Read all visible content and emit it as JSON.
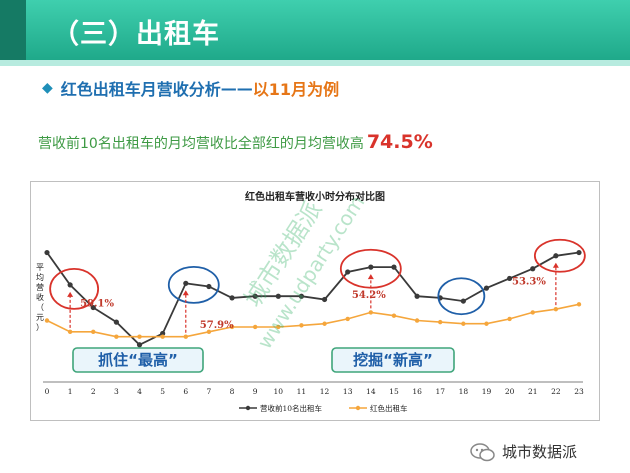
{
  "slide": {
    "title": "（三）出租车",
    "bullet_part1": "红色出租车月营收分析",
    "bullet_dash": "——",
    "bullet_part2": "以11月为例",
    "stat_text": "营收前10名出租车的月均营收比全部红的月均营收高",
    "stat_value": "74.5%"
  },
  "footer": {
    "brand": "城市数据派"
  },
  "watermark": {
    "line1": "城市数据派",
    "line2": "www.udparty.com"
  },
  "colors": {
    "header": "#2bbf9c",
    "series_top10": "#3a3a3a",
    "series_all": "#f5a63c",
    "circle_red": "#d9332b",
    "circle_blue": "#1f5fa8",
    "callout_text": "#c0392b",
    "box_border": "#3fa57a",
    "box_text": "#1f5fa8"
  },
  "chart_data": {
    "type": "line",
    "title": "红色出租车营收小时分布对比图",
    "ylabel": "平均营收（元）",
    "x": [
      0,
      1,
      2,
      3,
      4,
      5,
      6,
      7,
      8,
      9,
      10,
      11,
      12,
      13,
      14,
      15,
      16,
      17,
      18,
      19,
      20,
      21,
      22,
      23
    ],
    "categories": [
      "0",
      "1",
      "2",
      "3",
      "4",
      "5",
      "6",
      "7",
      "8",
      "9",
      "10",
      "11",
      "12",
      "13",
      "14",
      "15",
      "16",
      "17",
      "18",
      "19",
      "20",
      "21",
      "22",
      "23"
    ],
    "series": [
      {
        "name": "营收前10名出租车",
        "color": "#3a3a3a",
        "values": [
          80,
          60,
          46,
          37,
          23,
          30,
          61,
          59,
          52,
          53,
          53,
          53,
          51,
          68,
          71,
          71,
          53,
          52,
          50,
          58,
          64,
          70,
          78,
          80
        ]
      },
      {
        "name": "红色出租车",
        "color": "#f5a63c",
        "values": [
          38,
          31,
          31,
          28,
          28,
          28,
          28,
          31,
          34,
          34,
          34,
          35,
          36,
          39,
          43,
          41,
          38,
          37,
          36,
          36,
          39,
          43,
          45,
          48
        ]
      }
    ],
    "ylim": [
      0,
      110
    ],
    "grid": false,
    "legend": "bottom",
    "annotations": [
      {
        "text": "59.1%",
        "x": 1
      },
      {
        "text": "57.9%",
        "x": 6
      },
      {
        "text": "54.2%",
        "x": 14
      },
      {
        "text": "53.3%",
        "x": 22
      }
    ],
    "boxes": [
      {
        "label": "抓住“最高”"
      },
      {
        "label": "挖掘“新高”"
      }
    ]
  }
}
